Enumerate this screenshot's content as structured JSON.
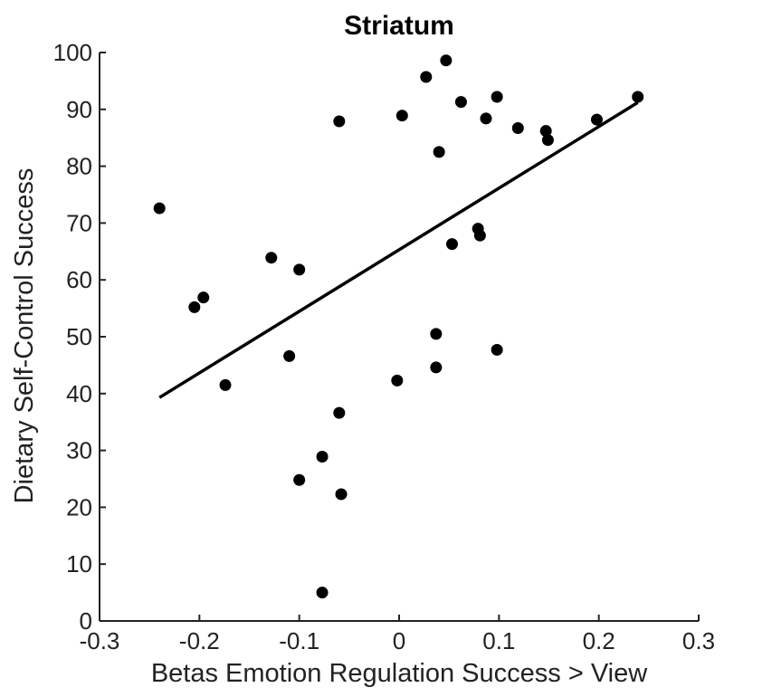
{
  "chart_data": {
    "type": "scatter",
    "title": "Striatum",
    "xlabel": "Betas Emotion Regulation Success > View",
    "ylabel": "Dietary Self-Control Success",
    "xlim": [
      -0.3,
      0.3
    ],
    "ylim": [
      0,
      100
    ],
    "xticks": [
      -0.3,
      -0.2,
      -0.1,
      0,
      0.1,
      0.2,
      0.3
    ],
    "xtick_labels": [
      "-0.3",
      "-0.2",
      "-0.1",
      "0",
      "0.1",
      "0.2",
      "0.3"
    ],
    "yticks": [
      0,
      10,
      20,
      30,
      40,
      50,
      60,
      70,
      80,
      90,
      100
    ],
    "ytick_labels": [
      "0",
      "10",
      "20",
      "30",
      "40",
      "50",
      "60",
      "70",
      "80",
      "90",
      "100"
    ],
    "grid": false,
    "points": [
      {
        "x": -0.24,
        "y": 72.6
      },
      {
        "x": -0.205,
        "y": 55.2
      },
      {
        "x": -0.196,
        "y": 56.9
      },
      {
        "x": -0.174,
        "y": 41.5
      },
      {
        "x": -0.128,
        "y": 63.9
      },
      {
        "x": -0.11,
        "y": 46.6
      },
      {
        "x": -0.1,
        "y": 61.8
      },
      {
        "x": -0.1,
        "y": 24.8
      },
      {
        "x": -0.077,
        "y": 28.9
      },
      {
        "x": -0.077,
        "y": 5.0
      },
      {
        "x": -0.06,
        "y": 87.9
      },
      {
        "x": -0.06,
        "y": 36.6
      },
      {
        "x": -0.058,
        "y": 22.3
      },
      {
        "x": -0.002,
        "y": 42.3
      },
      {
        "x": 0.003,
        "y": 88.9
      },
      {
        "x": 0.027,
        "y": 95.7
      },
      {
        "x": 0.037,
        "y": 50.5
      },
      {
        "x": 0.037,
        "y": 44.6
      },
      {
        "x": 0.04,
        "y": 82.5
      },
      {
        "x": 0.047,
        "y": 98.6
      },
      {
        "x": 0.053,
        "y": 66.3
      },
      {
        "x": 0.062,
        "y": 91.3
      },
      {
        "x": 0.079,
        "y": 69.0
      },
      {
        "x": 0.081,
        "y": 67.8
      },
      {
        "x": 0.087,
        "y": 88.4
      },
      {
        "x": 0.098,
        "y": 92.2
      },
      {
        "x": 0.098,
        "y": 47.7
      },
      {
        "x": 0.119,
        "y": 86.7
      },
      {
        "x": 0.147,
        "y": 86.2
      },
      {
        "x": 0.149,
        "y": 84.6
      },
      {
        "x": 0.198,
        "y": 88.2
      },
      {
        "x": 0.239,
        "y": 92.2
      }
    ],
    "fit_line": {
      "x": [
        -0.24,
        0.239
      ],
      "y": [
        39.3,
        91.2
      ]
    }
  }
}
